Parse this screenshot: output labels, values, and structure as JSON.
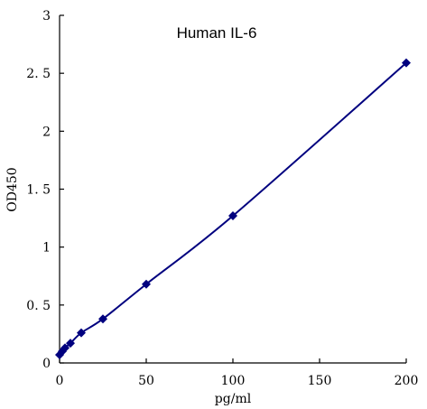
{
  "chart_data": {
    "type": "scatter",
    "title": "Human IL-6",
    "xlabel": "pg/ml",
    "ylabel": "OD450",
    "xlim": [
      0,
      200
    ],
    "ylim": [
      0,
      3
    ],
    "xticks": [
      0,
      50,
      100,
      150,
      200
    ],
    "yticks": [
      0,
      0.5,
      1,
      1.5,
      2,
      2.5,
      3
    ],
    "xtick_labels": [
      "0",
      "50",
      "100",
      "150",
      "200"
    ],
    "ytick_labels": [
      "0",
      "0. 5",
      "1",
      "1. 5",
      "2",
      "2. 5",
      "3"
    ],
    "grid": false,
    "legend": "none",
    "series": [
      {
        "color": "#00007f",
        "marker": "diamond",
        "line": "smooth",
        "x": [
          0,
          1.56,
          3.12,
          6.25,
          12.5,
          25,
          50,
          100,
          200
        ],
        "y": [
          0.07,
          0.1,
          0.13,
          0.17,
          0.26,
          0.38,
          0.68,
          1.27,
          2.59
        ]
      }
    ]
  }
}
